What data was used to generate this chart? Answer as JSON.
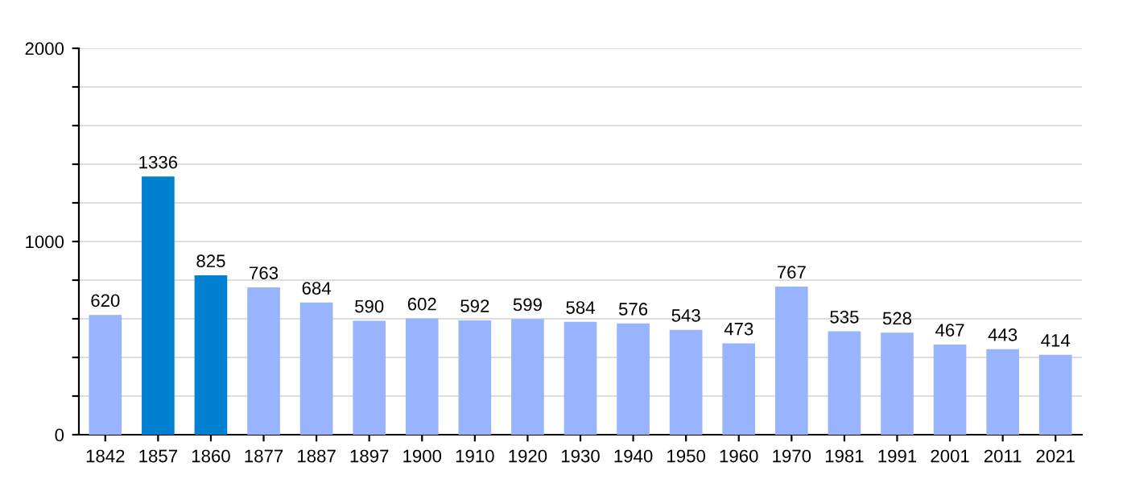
{
  "chart_data": {
    "type": "bar",
    "categories": [
      "1842",
      "1857",
      "1860",
      "1877",
      "1887",
      "1897",
      "1900",
      "1910",
      "1920",
      "1930",
      "1940",
      "1950",
      "1960",
      "1970",
      "1981",
      "1991",
      "2001",
      "2011",
      "2021"
    ],
    "values": [
      620,
      1336,
      825,
      763,
      684,
      590,
      602,
      592,
      599,
      584,
      576,
      543,
      473,
      767,
      535,
      528,
      467,
      443,
      414
    ],
    "colors": [
      "#99b4ff",
      "#0080d0",
      "#0080d0",
      "#99b4ff",
      "#99b4ff",
      "#99b4ff",
      "#99b4ff",
      "#99b4ff",
      "#99b4ff",
      "#99b4ff",
      "#99b4ff",
      "#99b4ff",
      "#99b4ff",
      "#99b4ff",
      "#99b4ff",
      "#99b4ff",
      "#99b4ff",
      "#99b4ff",
      "#99b4ff"
    ],
    "ylim": [
      0,
      2000
    ],
    "yticks": [
      0,
      {
        "value": 200,
        "label": null
      },
      {
        "value": 400,
        "label": null
      },
      {
        "value": 600,
        "label": null
      },
      {
        "value": 800,
        "label": null
      },
      1000,
      {
        "value": 1200,
        "label": null
      },
      {
        "value": 1400,
        "label": null
      },
      {
        "value": 1600,
        "label": null
      },
      {
        "value": 1800,
        "label": null
      },
      2000
    ],
    "grid": "y",
    "data_labels": true
  }
}
